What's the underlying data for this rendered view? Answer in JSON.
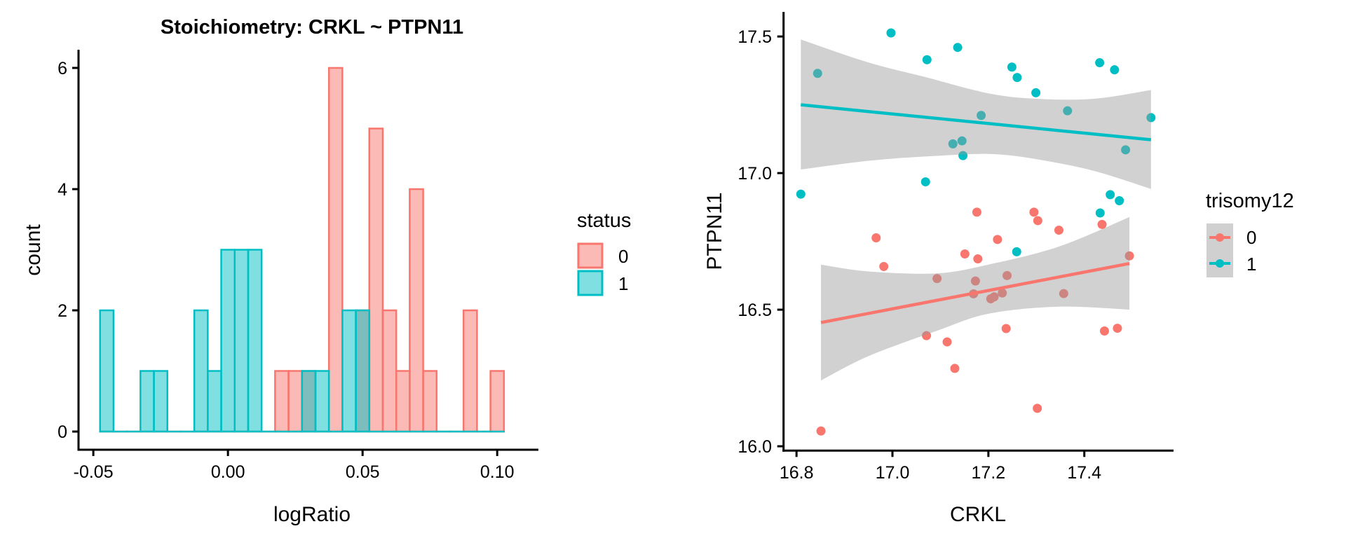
{
  "colors": {
    "status_0": "#F8766D",
    "status_1": "#00BFC4",
    "ribbon": "#999999",
    "axis": "#000000"
  },
  "chart_data": [
    {
      "type": "bar",
      "subtype": "histogram",
      "title": "Stoichiometry: CRKL ~ PTPN11",
      "xlabel": "logRatio",
      "ylabel": "count",
      "xlim": [
        -0.0555,
        0.1153
      ],
      "ylim": [
        -0.3,
        6.3
      ],
      "x_ticks": [
        -0.05,
        0.0,
        0.05,
        0.1
      ],
      "x_tick_labels": [
        "-0.05",
        "0.00",
        "0.05",
        "0.10"
      ],
      "y_ticks": [
        0,
        2,
        4,
        6
      ],
      "y_tick_labels": [
        "0",
        "2",
        "4",
        "6"
      ],
      "bin_start": -0.0475,
      "bin_width": 0.005,
      "grid": false,
      "legend": {
        "title": "status",
        "position": "right",
        "entries": [
          {
            "label": "0",
            "color_key": "status_0"
          },
          {
            "label": "1",
            "color_key": "status_1"
          }
        ]
      },
      "series": [
        {
          "name": "0",
          "color_key": "status_0",
          "values": [
            0,
            0,
            0,
            0,
            0,
            0,
            0,
            0,
            0,
            0,
            0,
            0,
            0,
            1,
            1,
            1,
            0,
            6,
            0,
            2,
            5,
            2,
            1,
            4,
            1,
            0,
            0,
            2,
            0,
            1
          ]
        },
        {
          "name": "1",
          "color_key": "status_1",
          "values": [
            2,
            0,
            0,
            1,
            1,
            0,
            0,
            2,
            1,
            3,
            3,
            3,
            0,
            0,
            0,
            1,
            1,
            0,
            2,
            2,
            0,
            0,
            0,
            0,
            0,
            0,
            0,
            0,
            0,
            0
          ]
        }
      ]
    },
    {
      "type": "scatter",
      "title": "",
      "xlabel": "CRKL",
      "ylabel": "PTPN11",
      "xlim": [
        16.773,
        17.586
      ],
      "ylim": [
        15.984,
        17.59
      ],
      "x_ticks": [
        16.8,
        17.0,
        17.2,
        17.4
      ],
      "x_tick_labels": [
        "16.8",
        "17.0",
        "17.2",
        "17.4"
      ],
      "y_ticks": [
        16.0,
        16.5,
        17.0,
        17.5
      ],
      "y_tick_labels": [
        "16.0",
        "16.5",
        "17.0",
        "17.5"
      ],
      "grid": false,
      "legend": {
        "title": "trisomy12",
        "position": "right",
        "entries": [
          {
            "label": "0",
            "color_key": "status_0"
          },
          {
            "label": "1",
            "color_key": "status_1"
          }
        ]
      },
      "series": [
        {
          "name": "0",
          "color_key": "status_0",
          "points": [
            [
              16.851,
              16.056
            ],
            [
              16.966,
              16.763
            ],
            [
              16.982,
              16.658
            ],
            [
              17.071,
              16.405
            ],
            [
              17.093,
              16.614
            ],
            [
              17.114,
              16.382
            ],
            [
              17.13,
              16.285
            ],
            [
              17.151,
              16.704
            ],
            [
              17.169,
              16.558
            ],
            [
              17.173,
              16.605
            ],
            [
              17.176,
              16.857
            ],
            [
              17.178,
              16.686
            ],
            [
              17.205,
              16.54
            ],
            [
              17.212,
              16.547
            ],
            [
              17.219,
              16.757
            ],
            [
              17.229,
              16.561
            ],
            [
              17.237,
              16.431
            ],
            [
              17.239,
              16.625
            ],
            [
              17.295,
              16.857
            ],
            [
              17.302,
              16.139
            ],
            [
              17.303,
              16.826
            ],
            [
              17.347,
              16.791
            ],
            [
              17.357,
              16.559
            ],
            [
              17.437,
              16.812
            ],
            [
              17.442,
              16.422
            ],
            [
              17.469,
              16.432
            ],
            [
              17.494,
              16.697
            ]
          ],
          "fit": {
            "method": "lm",
            "x": [
              16.851,
              17.494
            ],
            "y": [
              16.453,
              16.669
            ]
          },
          "ribbon": {
            "x": [
              16.851,
              16.95,
              17.093,
              17.2,
              17.347,
              17.494
            ],
            "upper": [
              16.665,
              16.64,
              16.633,
              16.665,
              16.731,
              16.839
            ],
            "lower": [
              16.241,
              16.33,
              16.423,
              16.485,
              16.511,
              16.5
            ]
          }
        },
        {
          "name": "1",
          "color_key": "status_1",
          "points": [
            [
              16.809,
              16.923
            ],
            [
              16.844,
              17.365
            ],
            [
              16.997,
              17.513
            ],
            [
              17.069,
              16.968
            ],
            [
              17.072,
              17.415
            ],
            [
              17.126,
              17.107
            ],
            [
              17.136,
              17.46
            ],
            [
              17.145,
              17.118
            ],
            [
              17.147,
              17.064
            ],
            [
              17.185,
              17.211
            ],
            [
              17.249,
              17.388
            ],
            [
              17.259,
              16.712
            ],
            [
              17.26,
              17.35
            ],
            [
              17.299,
              17.294
            ],
            [
              17.365,
              17.228
            ],
            [
              17.432,
              17.404
            ],
            [
              17.433,
              16.854
            ],
            [
              17.454,
              16.921
            ],
            [
              17.463,
              17.378
            ],
            [
              17.473,
              16.899
            ],
            [
              17.486,
              17.085
            ],
            [
              17.539,
              17.203
            ]
          ],
          "fit": {
            "method": "lm",
            "x": [
              16.809,
              17.539
            ],
            "y": [
              17.25,
              17.122
            ]
          },
          "ribbon": {
            "x": [
              16.809,
              16.95,
              17.072,
              17.2,
              17.3,
              17.42,
              17.539
            ],
            "upper": [
              17.489,
              17.405,
              17.35,
              17.292,
              17.272,
              17.272,
              17.304
            ],
            "lower": [
              17.013,
              17.045,
              17.061,
              17.07,
              17.051,
              17.008,
              16.942
            ]
          }
        }
      ]
    }
  ]
}
